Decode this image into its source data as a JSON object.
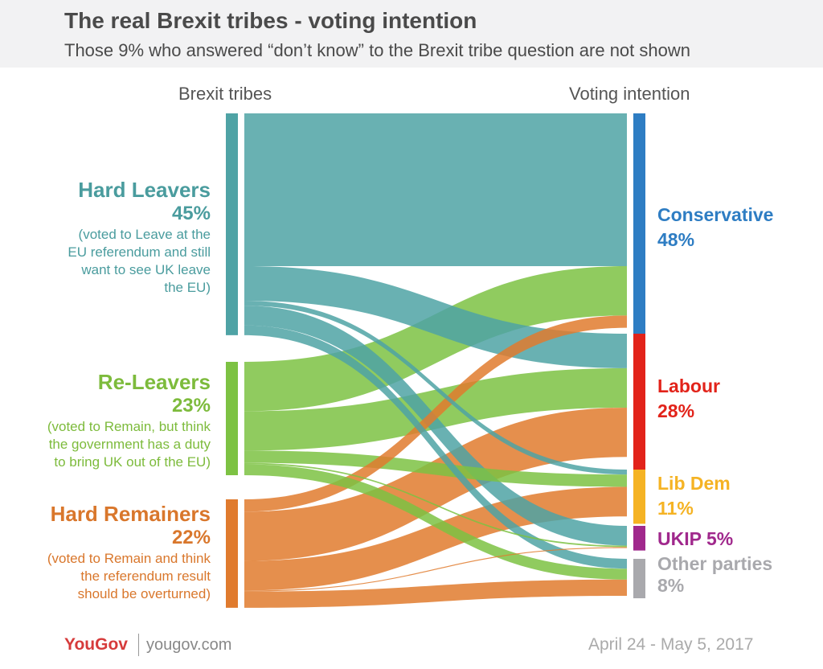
{
  "title": "The real Brexit tribes - voting intention",
  "subtitle": "Those 9% who answered “don’t know” to the Brexit tribe question are not shown",
  "left_header": "Brexit tribes",
  "right_header": "Voting intention",
  "tribes": [
    {
      "name": "Hard Leavers",
      "pct": "45%",
      "desc": [
        "(voted to Leave at the",
        "EU referendum and still",
        "want to see UK leave",
        "the EU)"
      ],
      "color": "#4fa3a5"
    },
    {
      "name": "Re-Leavers",
      "pct": "23%",
      "desc": [
        "(voted to Remain, but think",
        "the government has a duty",
        "to bring UK out of the EU)"
      ],
      "color": "#7dc243"
    },
    {
      "name": "Hard Remainers",
      "pct": "22%",
      "desc": [
        "(voted to Remain and think",
        "the referendum result",
        "should be overturned)"
      ],
      "color": "#e07b2e"
    }
  ],
  "parties": [
    {
      "name": "Conservative",
      "pct": "48%",
      "color": "#2e7dc3"
    },
    {
      "name": "Labour",
      "pct": "28%",
      "color": "#e2231a"
    },
    {
      "name": "Lib Dem",
      "pct": "11%",
      "color": "#f5b324"
    },
    {
      "name": "UKIP",
      "pct": "5%",
      "color": "#a0288c"
    },
    {
      "name": "Other parties",
      "pct": "8%",
      "color": "#a9a9ad"
    }
  ],
  "footer": {
    "brand": "YouGov",
    "url": "yougov.com",
    "date": "April 24 - May 5, 2017"
  },
  "chart_data": {
    "type": "sankey",
    "title": "The real Brexit tribes - voting intention",
    "sources": [
      {
        "name": "Hard Leavers",
        "value": 45
      },
      {
        "name": "Re-Leavers",
        "value": 23
      },
      {
        "name": "Hard Remainers",
        "value": 22
      }
    ],
    "targets": [
      {
        "name": "Conservative",
        "value": 48
      },
      {
        "name": "Labour",
        "value": 28
      },
      {
        "name": "Lib Dem",
        "value": 11
      },
      {
        "name": "UKIP",
        "value": 5
      },
      {
        "name": "Other parties",
        "value": 8
      }
    ],
    "flows": [
      {
        "from": "Hard Leavers",
        "to": "Conservative",
        "value": 31
      },
      {
        "from": "Hard Leavers",
        "to": "Labour",
        "value": 7
      },
      {
        "from": "Hard Leavers",
        "to": "Lib Dem",
        "value": 1
      },
      {
        "from": "Hard Leavers",
        "to": "UKIP",
        "value": 4
      },
      {
        "from": "Hard Leavers",
        "to": "Other parties",
        "value": 2
      },
      {
        "from": "Re-Leavers",
        "to": "Conservative",
        "value": 10
      },
      {
        "from": "Re-Leavers",
        "to": "Labour",
        "value": 8
      },
      {
        "from": "Re-Leavers",
        "to": "Lib Dem",
        "value": 2.5
      },
      {
        "from": "Re-Leavers",
        "to": "UKIP",
        "value": 0.3
      },
      {
        "from": "Re-Leavers",
        "to": "Other parties",
        "value": 2.2
      },
      {
        "from": "Hard Remainers",
        "to": "Conservative",
        "value": 2.5
      },
      {
        "from": "Hard Remainers",
        "to": "Labour",
        "value": 10
      },
      {
        "from": "Hard Remainers",
        "to": "Lib Dem",
        "value": 6
      },
      {
        "from": "Hard Remainers",
        "to": "UKIP",
        "value": 0.2
      },
      {
        "from": "Hard Remainers",
        "to": "Other parties",
        "value": 3.3
      }
    ]
  }
}
